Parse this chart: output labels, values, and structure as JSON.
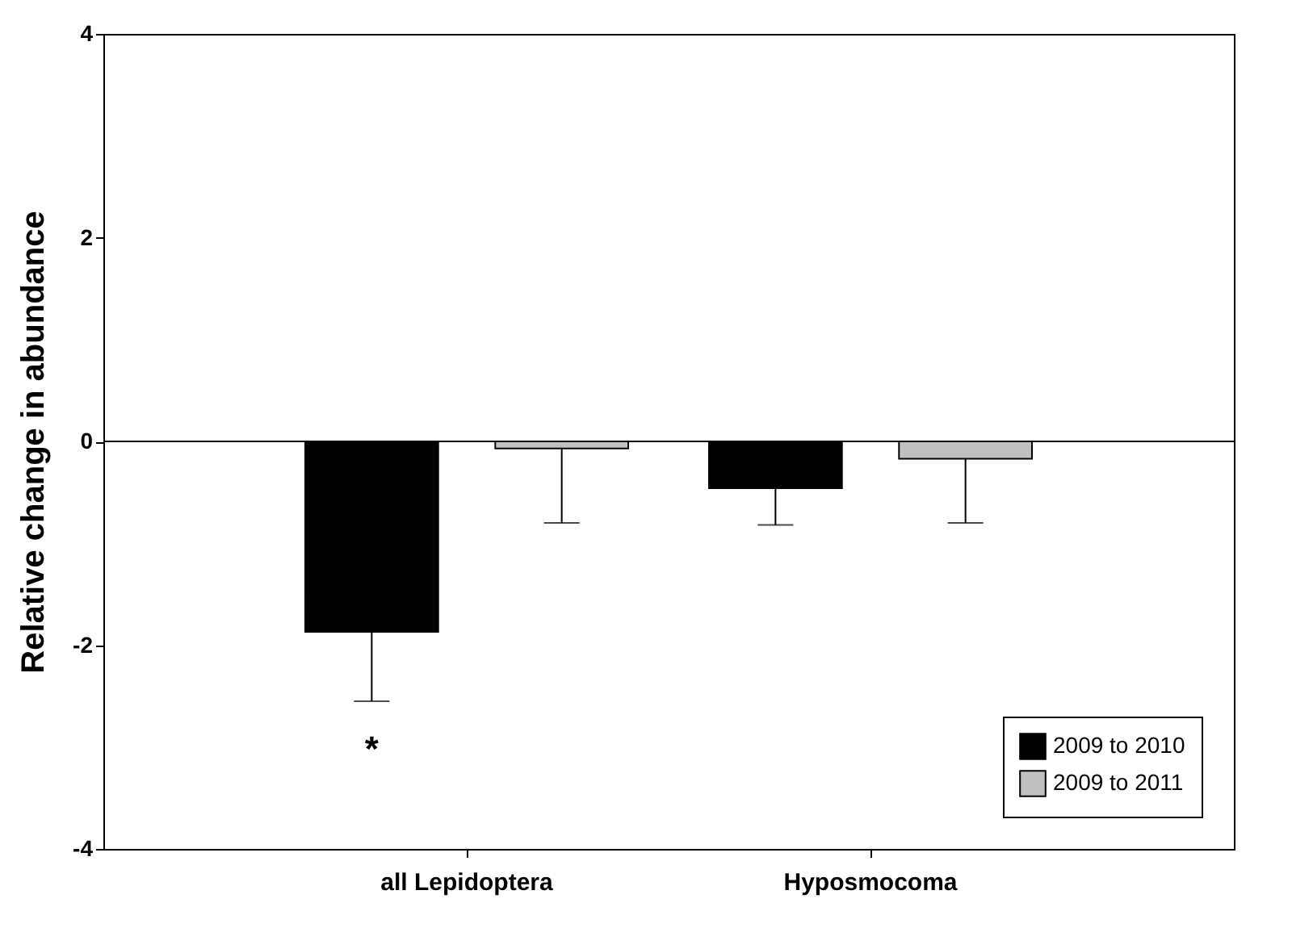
{
  "chart_data": {
    "type": "bar",
    "ylabel": "Relative change in abundance",
    "categories": [
      "all Lepidoptera",
      "Hyposmocoma"
    ],
    "series": [
      {
        "name": "2009 to 2010",
        "color": "#000000",
        "values": [
          -1.87,
          -0.46
        ],
        "errors": [
          [
            -2.55,
            -1.87
          ],
          [
            -0.82,
            -0.46
          ]
        ]
      },
      {
        "name": "2009 to 2011",
        "color": "#c0c0c0",
        "values": [
          -0.07,
          -0.17
        ],
        "errors": [
          [
            -0.8,
            -0.07
          ],
          [
            -0.8,
            -0.17
          ]
        ]
      }
    ],
    "ylim": [
      -4,
      4
    ],
    "yticks": [
      -4,
      -2,
      0,
      2,
      4
    ],
    "grid": false,
    "legend": "bottom right",
    "ref_lines": [
      {
        "axis": "y",
        "value": 0
      }
    ],
    "annotations": [
      "*"
    ]
  }
}
